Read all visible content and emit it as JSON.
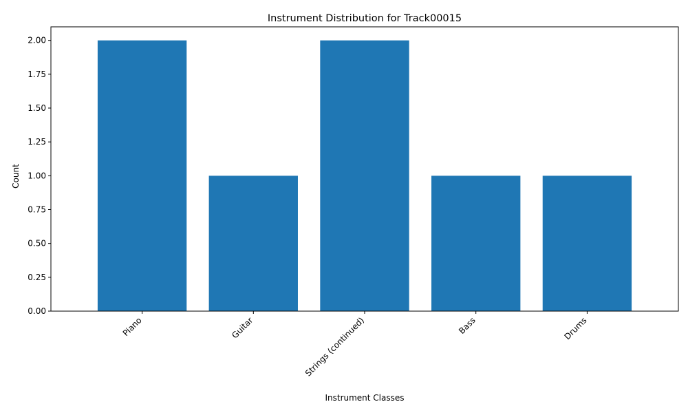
{
  "chart_data": {
    "type": "bar",
    "title": "Instrument Distribution for Track00015",
    "xlabel": "Instrument Classes",
    "ylabel": "Count",
    "categories": [
      "Piano",
      "Guitar",
      "Strings (continued)",
      "Bass",
      "Drums"
    ],
    "values": [
      2,
      1,
      2,
      1,
      1
    ],
    "ylim": [
      0,
      2.1
    ],
    "yticks": [
      0.0,
      0.25,
      0.5,
      0.75,
      1.0,
      1.25,
      1.5,
      1.75,
      2.0
    ],
    "ytick_labels": [
      "0.00",
      "0.25",
      "0.50",
      "0.75",
      "1.00",
      "1.25",
      "1.50",
      "1.75",
      "2.00"
    ],
    "grid": false,
    "colors": {
      "bar": "#1f77b4",
      "axis": "#000000"
    }
  }
}
